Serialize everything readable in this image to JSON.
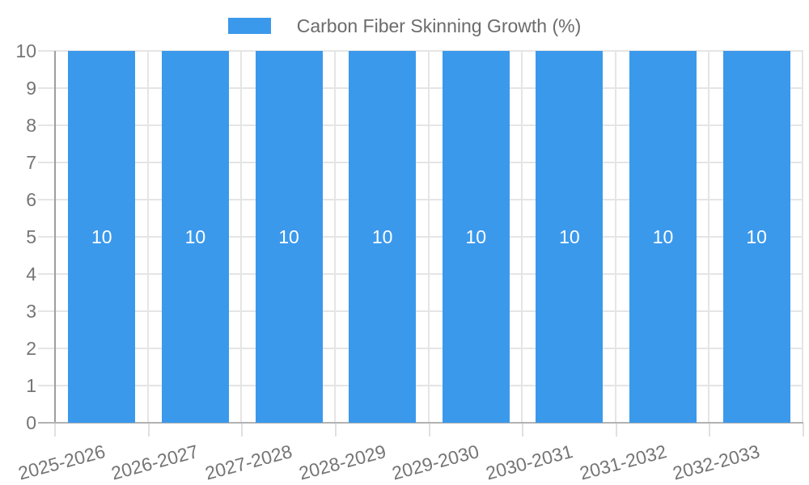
{
  "chart_data": {
    "type": "bar",
    "title": "Carbon Fiber Skinning Growth (%)",
    "categories": [
      "2025-2026",
      "2026-2027",
      "2027-2028",
      "2028-2029",
      "2029-2030",
      "2030-2031",
      "2031-2032",
      "2032-2033"
    ],
    "series": [
      {
        "name": "Carbon Fiber Skinning Growth (%)",
        "values": [
          10,
          10,
          10,
          10,
          10,
          10,
          10,
          10
        ]
      }
    ],
    "bar_value_labels": [
      "10",
      "10",
      "10",
      "10",
      "10",
      "10",
      "10",
      "10"
    ],
    "xlabel": "",
    "ylabel": "",
    "ylim": [
      0,
      10
    ],
    "y_ticks": [
      0,
      1,
      2,
      3,
      4,
      5,
      6,
      7,
      8,
      9,
      10
    ],
    "grid": true,
    "legend_position": "top-center"
  },
  "legend": {
    "label": "Carbon Fiber Skinning Growth (%)"
  },
  "colors": {
    "bar": "#3b99ec",
    "bar_label": "#ffffff",
    "axis_text": "#757575",
    "legend_text": "#6b6b6b",
    "gridline": "#e5e5e5",
    "tick": "#e0e0e0",
    "y_axis_line": "#9e9e9e",
    "x_axis_line": "#b3b3b3",
    "background": "#ffffff"
  }
}
